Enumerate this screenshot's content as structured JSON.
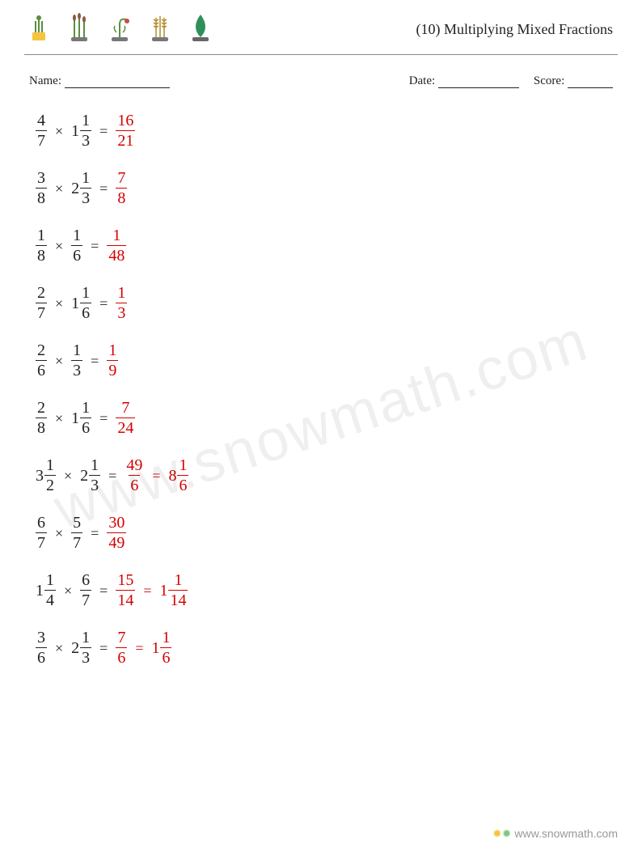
{
  "title": "(10) Multiplying Mixed Fractions",
  "meta": {
    "name_label": "Name:",
    "date_label": "Date:",
    "score_label": "Score:",
    "name_blank_width": 130,
    "date_blank_width": 100,
    "score_blank_width": 56
  },
  "styling": {
    "page_bg": "#ffffff",
    "text_color": "#222222",
    "answer_color": "#d30000",
    "rule_color": "#888888",
    "font_size_body": 20,
    "font_size_title": 18,
    "watermark_text": "www.snowmath.com",
    "watermark_opacity": 0.06,
    "watermark_rotate_deg": -18,
    "watermark_fontsize": 72,
    "footer_text": "www.snowmath.com",
    "footer_color": "#999999"
  },
  "icons": [
    {
      "name": "plant-pot-icon",
      "fill": "#f5c542",
      "accent": "#5a8f3d"
    },
    {
      "name": "reeds-icon",
      "fill": "#5a8f3d",
      "accent": "#8a5a44"
    },
    {
      "name": "drooping-flower-icon",
      "fill": "#5a8f3d",
      "accent": "#c0504d"
    },
    {
      "name": "wheat-icon",
      "fill": "#b58b2b",
      "accent": "#5a8f3d"
    },
    {
      "name": "leaf-icon",
      "fill": "#2f8f5b",
      "accent": "#666666"
    }
  ],
  "problems": [
    {
      "a": {
        "n": 4,
        "d": 7
      },
      "b": {
        "w": 1,
        "n": 1,
        "d": 3
      },
      "result": [
        {
          "n": 16,
          "d": 21
        }
      ]
    },
    {
      "a": {
        "n": 3,
        "d": 8
      },
      "b": {
        "w": 2,
        "n": 1,
        "d": 3
      },
      "result": [
        {
          "n": 7,
          "d": 8
        }
      ]
    },
    {
      "a": {
        "n": 1,
        "d": 8
      },
      "b": {
        "n": 1,
        "d": 6
      },
      "result": [
        {
          "n": 1,
          "d": 48
        }
      ]
    },
    {
      "a": {
        "n": 2,
        "d": 7
      },
      "b": {
        "w": 1,
        "n": 1,
        "d": 6
      },
      "result": [
        {
          "n": 1,
          "d": 3
        }
      ]
    },
    {
      "a": {
        "n": 2,
        "d": 6
      },
      "b": {
        "n": 1,
        "d": 3
      },
      "result": [
        {
          "n": 1,
          "d": 9
        }
      ]
    },
    {
      "a": {
        "n": 2,
        "d": 8
      },
      "b": {
        "w": 1,
        "n": 1,
        "d": 6
      },
      "result": [
        {
          "n": 7,
          "d": 24
        }
      ]
    },
    {
      "a": {
        "w": 3,
        "n": 1,
        "d": 2
      },
      "b": {
        "w": 2,
        "n": 1,
        "d": 3
      },
      "result": [
        {
          "n": 49,
          "d": 6
        },
        {
          "w": 8,
          "n": 1,
          "d": 6
        }
      ]
    },
    {
      "a": {
        "n": 6,
        "d": 7
      },
      "b": {
        "n": 5,
        "d": 7
      },
      "result": [
        {
          "n": 30,
          "d": 49
        }
      ]
    },
    {
      "a": {
        "w": 1,
        "n": 1,
        "d": 4
      },
      "b": {
        "n": 6,
        "d": 7
      },
      "result": [
        {
          "n": 15,
          "d": 14
        },
        {
          "w": 1,
          "n": 1,
          "d": 14
        }
      ]
    },
    {
      "a": {
        "n": 3,
        "d": 6
      },
      "b": {
        "w": 2,
        "n": 1,
        "d": 3
      },
      "result": [
        {
          "n": 7,
          "d": 6
        },
        {
          "w": 1,
          "n": 1,
          "d": 6
        }
      ]
    }
  ],
  "symbols": {
    "times": "×",
    "equals": "="
  }
}
